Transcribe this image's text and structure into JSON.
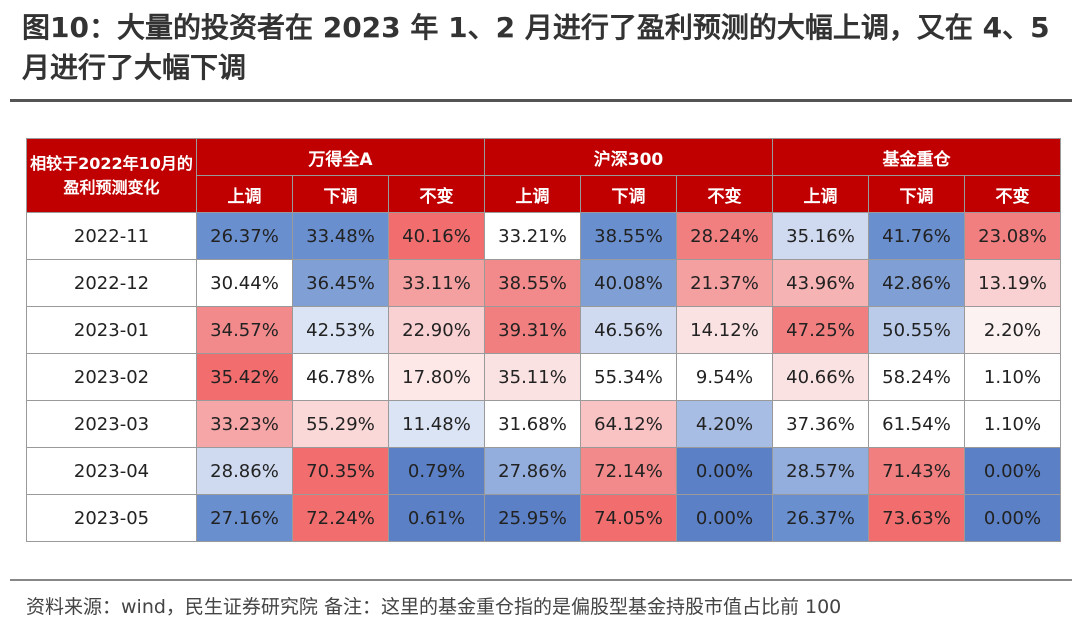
{
  "title": "图10：大量的投资者在 2023 年 1、2 月进行了盈利预测的大幅上调，又在 4、5 月进行了大幅下调",
  "table": {
    "corner_label": "相较于2022年10月的盈利预测变化",
    "groups": [
      "万得全A",
      "沪深300",
      "基金重仓"
    ],
    "subheaders": [
      "上调",
      "下调",
      "不变"
    ],
    "rows": [
      {
        "date": "2022-11",
        "cells": [
          {
            "text": "26.37%",
            "bg": "#6a8fcf"
          },
          {
            "text": "33.48%",
            "bg": "#6a8fcf"
          },
          {
            "text": "40.16%",
            "bg": "#f26d6e"
          },
          {
            "text": "33.21%",
            "bg": "#ffffff"
          },
          {
            "text": "38.55%",
            "bg": "#6a8fcf"
          },
          {
            "text": "28.24%",
            "bg": "#f27f80"
          },
          {
            "text": "35.16%",
            "bg": "#cfdaf0"
          },
          {
            "text": "41.76%",
            "bg": "#6a8fcf"
          },
          {
            "text": "23.08%",
            "bg": "#f27f80"
          }
        ]
      },
      {
        "date": "2022-12",
        "cells": [
          {
            "text": "30.44%",
            "bg": "#ffffff"
          },
          {
            "text": "36.45%",
            "bg": "#7f9fd5"
          },
          {
            "text": "33.11%",
            "bg": "#f4a0a1"
          },
          {
            "text": "38.55%",
            "bg": "#f28a8b"
          },
          {
            "text": "40.08%",
            "bg": "#7f9fd5"
          },
          {
            "text": "21.37%",
            "bg": "#f4a0a1"
          },
          {
            "text": "43.96%",
            "bg": "#f6b3b4"
          },
          {
            "text": "42.86%",
            "bg": "#7f9fd5"
          },
          {
            "text": "13.19%",
            "bg": "#f9d1d2"
          }
        ]
      },
      {
        "date": "2023-01",
        "cells": [
          {
            "text": "34.57%",
            "bg": "#f28a8b"
          },
          {
            "text": "42.53%",
            "bg": "#dbe4f4"
          },
          {
            "text": "22.90%",
            "bg": "#f9d1d2"
          },
          {
            "text": "39.31%",
            "bg": "#f27f80"
          },
          {
            "text": "46.56%",
            "bg": "#cfdaf0"
          },
          {
            "text": "14.12%",
            "bg": "#fbe2e2"
          },
          {
            "text": "47.25%",
            "bg": "#f27f80"
          },
          {
            "text": "50.55%",
            "bg": "#bacbe9"
          },
          {
            "text": "2.20%",
            "bg": "#fdf2f2"
          }
        ]
      },
      {
        "date": "2023-02",
        "cells": [
          {
            "text": "35.42%",
            "bg": "#f26d6e"
          },
          {
            "text": "46.78%",
            "bg": "#ffffff"
          },
          {
            "text": "17.80%",
            "bg": "#fde7e7"
          },
          {
            "text": "35.11%",
            "bg": "#fbe2e2"
          },
          {
            "text": "55.34%",
            "bg": "#ffffff"
          },
          {
            "text": "9.54%",
            "bg": "#ffffff"
          },
          {
            "text": "40.66%",
            "bg": "#fbe2e2"
          },
          {
            "text": "58.24%",
            "bg": "#ffffff"
          },
          {
            "text": "1.10%",
            "bg": "#ffffff"
          }
        ]
      },
      {
        "date": "2023-03",
        "cells": [
          {
            "text": "33.23%",
            "bg": "#f6a6a7"
          },
          {
            "text": "55.29%",
            "bg": "#fbd8d8"
          },
          {
            "text": "11.48%",
            "bg": "#dbe4f4"
          },
          {
            "text": "31.68%",
            "bg": "#ffffff"
          },
          {
            "text": "64.12%",
            "bg": "#f9c3c4"
          },
          {
            "text": "4.20%",
            "bg": "#a8bde3"
          },
          {
            "text": "37.36%",
            "bg": "#ffffff"
          },
          {
            "text": "61.54%",
            "bg": "#ffffff"
          },
          {
            "text": "1.10%",
            "bg": "#ffffff"
          }
        ]
      },
      {
        "date": "2023-04",
        "cells": [
          {
            "text": "28.86%",
            "bg": "#cfdaf0"
          },
          {
            "text": "70.35%",
            "bg": "#f26d6e"
          },
          {
            "text": "0.79%",
            "bg": "#5b80c5"
          },
          {
            "text": "27.86%",
            "bg": "#93addc"
          },
          {
            "text": "72.14%",
            "bg": "#f28a8b"
          },
          {
            "text": "0.00%",
            "bg": "#5b80c5"
          },
          {
            "text": "28.57%",
            "bg": "#93addc"
          },
          {
            "text": "71.43%",
            "bg": "#f27f80"
          },
          {
            "text": "0.00%",
            "bg": "#5b80c5"
          }
        ]
      },
      {
        "date": "2023-05",
        "cells": [
          {
            "text": "27.16%",
            "bg": "#6a8fcf"
          },
          {
            "text": "72.24%",
            "bg": "#f26d6e"
          },
          {
            "text": "0.61%",
            "bg": "#5b80c5"
          },
          {
            "text": "25.95%",
            "bg": "#5b80c5"
          },
          {
            "text": "74.05%",
            "bg": "#f26d6e"
          },
          {
            "text": "0.00%",
            "bg": "#5b80c5"
          },
          {
            "text": "26.37%",
            "bg": "#6a8fcf"
          },
          {
            "text": "73.63%",
            "bg": "#f26d6e"
          },
          {
            "text": "0.00%",
            "bg": "#5b80c5"
          }
        ]
      }
    ]
  },
  "source": "资料来源：wind，民生证券研究院 备注：这里的基金重仓指的是偏股型基金持股市值占比前 100"
}
